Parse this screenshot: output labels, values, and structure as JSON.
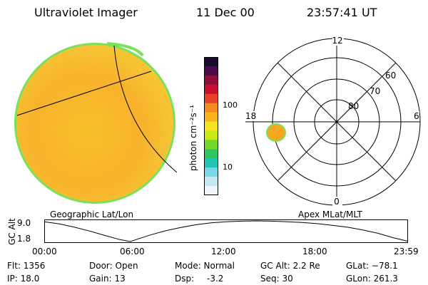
{
  "header": {
    "instrument": "Ultraviolet Imager",
    "date": "11 Dec 00",
    "time": "23:57:41 UT"
  },
  "left_panel": {
    "caption": "Geographic Lat/Lon"
  },
  "right_panel": {
    "caption": "Apex MLat/MLT",
    "mlt_labels": {
      "top": "12",
      "left": "18",
      "right": "6",
      "bottom": "0"
    },
    "lat_labels": [
      "60",
      "70",
      "80"
    ]
  },
  "colorbar": {
    "unit_label": "photon cm⁻²s⁻¹",
    "ticks": [
      "100",
      "10"
    ],
    "colors": [
      "#1a0a2e",
      "#4b0a4a",
      "#8e0f3a",
      "#c8102e",
      "#e8402a",
      "#f58a1e",
      "#f9b21a",
      "#f6e21f",
      "#c8e817",
      "#70d82a",
      "#2fc65f",
      "#22c4b4",
      "#7ad7e8",
      "#c6e8f2",
      "#eef5f7"
    ]
  },
  "altitude_plot": {
    "ylabel": "GC Alt",
    "y_ticks": [
      "9.0",
      "1.8"
    ],
    "x_ticks": [
      "00:00",
      "06:00",
      "12:00",
      "18:00",
      "23:59"
    ],
    "chart_data": {
      "type": "line",
      "x": [
        "00:00",
        "01:00",
        "02:00",
        "03:00",
        "04:00",
        "05:00",
        "05:40",
        "06:00",
        "07:00",
        "08:00",
        "09:00",
        "10:00",
        "11:00",
        "12:00",
        "13:00",
        "14:00",
        "15:00",
        "16:00",
        "17:00",
        "18:00",
        "19:00",
        "20:00",
        "21:00",
        "22:00",
        "23:00",
        "23:59"
      ],
      "series": [
        {
          "values": [
            9.0,
            8.2,
            7.0,
            5.6,
            4.0,
            2.5,
            1.8,
            2.4,
            4.2,
            5.7,
            6.9,
            7.9,
            8.6,
            9.0,
            9.2,
            9.3,
            9.2,
            9.0,
            8.7,
            8.3,
            7.7,
            7.0,
            6.0,
            4.8,
            3.2,
            1.9
          ]
        }
      ],
      "ylim": [
        1.8,
        9.3
      ]
    }
  },
  "status": {
    "flt": "Flt: 1356",
    "ip": "IP: 18.0",
    "door": "Door: Open",
    "gain": "Gain: 13",
    "mode": "Mode: Normal",
    "dsp_label": "Dsp:",
    "dsp_value": "-3.2",
    "gcalt": "GC Alt: 2.2 Re",
    "seq": "Seq: 30",
    "glat": "GLat: −78.1",
    "glon": "GLon: 261.3"
  }
}
